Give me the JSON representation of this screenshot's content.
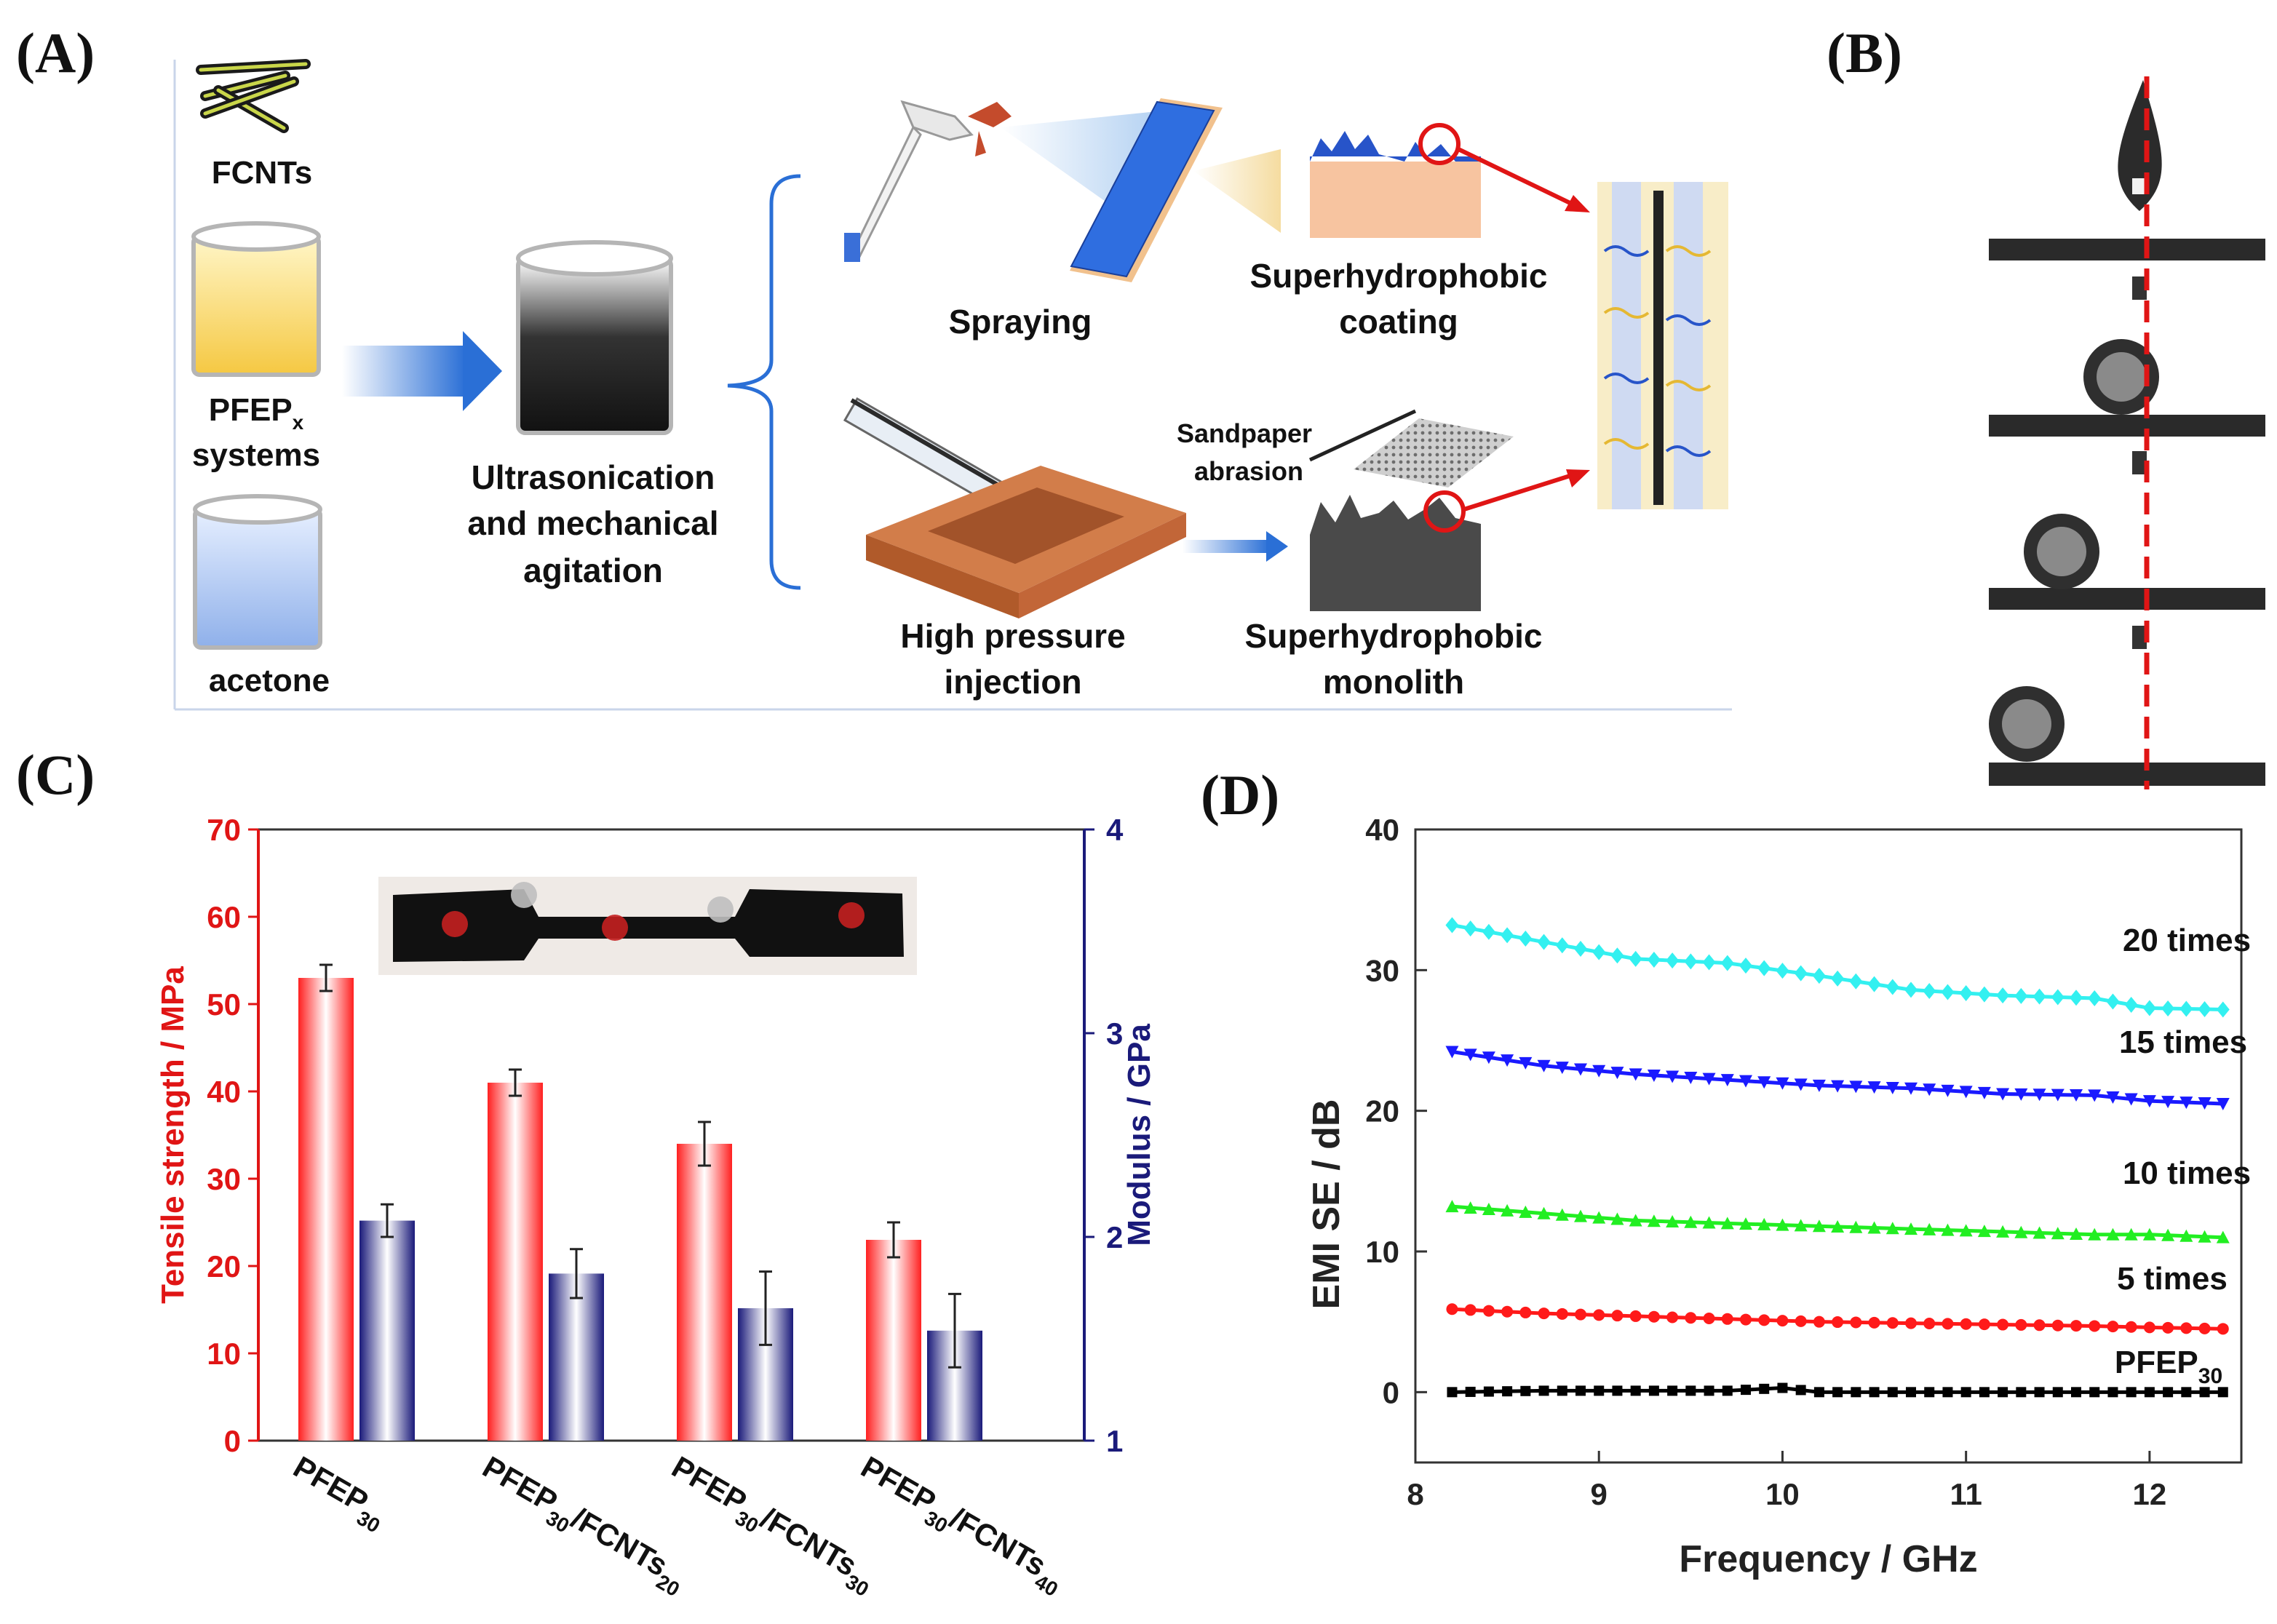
{
  "panels": {
    "a": "(A)",
    "b": "(B)",
    "c": "(C)",
    "d": "(D)"
  },
  "schematic": {
    "fcnts": "FCNTs",
    "pfep_main": "PFEP",
    "pfep_sub": "x",
    "systems": "systems",
    "acetone": "acetone",
    "ultra_1": "Ultrasonication",
    "ultra_2": "and mechanical",
    "ultra_3": "agitation",
    "spraying": "Spraying",
    "coating_1": "Superhydrophobic",
    "coating_2": "coating",
    "sandpaper_1": "Sandpaper",
    "sandpaper_2": "abrasion",
    "injection_1": "High pressure",
    "injection_2": "injection",
    "monolith_1": "Superhydrophobic",
    "monolith_2": "monolith"
  },
  "colors": {
    "red": "#ff1a1a",
    "navy": "#1a1a7a",
    "cyan": "#33f0f0",
    "blue": "#1a1aff",
    "green": "#22ee22",
    "black": "#000000",
    "accent_blue": "#2a6fd6"
  },
  "chart_data": [
    {
      "type": "bar",
      "title": "",
      "categories": [
        "PFEP30",
        "PFEP30/FCNTs20",
        "PFEP30/FCNTs30",
        "PFEP30/FCNTs40"
      ],
      "category_labels": [
        {
          "main": "PFEP",
          "sub1": "30",
          "mid": "",
          "sub2": ""
        },
        {
          "main": "PFEP",
          "sub1": "30",
          "mid": "/FCNTs",
          "sub2": "20"
        },
        {
          "main": "PFEP",
          "sub1": "30",
          "mid": "/FCNTs",
          "sub2": "30"
        },
        {
          "main": "PFEP",
          "sub1": "30",
          "mid": "/FCNTs",
          "sub2": "40"
        }
      ],
      "series": [
        {
          "name": "Tensile strength",
          "axis": "left",
          "values": [
            53,
            41,
            34,
            23
          ],
          "errors": [
            1.5,
            1.5,
            2.5,
            2.0
          ]
        },
        {
          "name": "Modulus",
          "axis": "right",
          "values": [
            2.08,
            1.82,
            1.65,
            1.54
          ],
          "errors": [
            0.08,
            0.12,
            0.18,
            0.18
          ]
        }
      ],
      "ylabel": "Tensile strength / MPa",
      "ylim": [
        0,
        70
      ],
      "yticks": [
        "0",
        "10",
        "20",
        "30",
        "40",
        "50",
        "60",
        "70"
      ],
      "y2label": "Modulus / GPa",
      "y2lim": [
        1,
        4
      ],
      "y2ticks": [
        "1",
        "2",
        "3",
        "4"
      ]
    },
    {
      "type": "scatter",
      "title": "",
      "xlabel": "Frequency / GHz",
      "ylabel": "EMI SE / dB",
      "xlim": [
        8,
        12.5
      ],
      "ylim": [
        -5,
        40
      ],
      "xticks": [
        "8",
        "9",
        "10",
        "11",
        "12"
      ],
      "yticks": [
        "0",
        "10",
        "20",
        "30",
        "40"
      ],
      "series": [
        {
          "name": "20 times",
          "color": "#33f0f0",
          "marker": "diamond",
          "x": [
            8.2,
            8.7,
            9.2,
            9.7,
            10.2,
            10.7,
            11.2,
            11.7,
            12.0,
            12.4
          ],
          "y": [
            33.2,
            32.0,
            30.8,
            30.5,
            29.6,
            28.6,
            28.2,
            28.0,
            27.3,
            27.2
          ]
        },
        {
          "name": "15 times",
          "color": "#1a1aff",
          "marker": "triangle-down",
          "x": [
            8.2,
            8.7,
            9.2,
            9.7,
            10.2,
            10.7,
            11.2,
            11.7,
            12.0,
            12.4
          ],
          "y": [
            24.2,
            23.2,
            22.6,
            22.2,
            21.8,
            21.6,
            21.2,
            21.1,
            20.7,
            20.5
          ]
        },
        {
          "name": "10 times",
          "color": "#22ee22",
          "marker": "triangle-up",
          "x": [
            8.2,
            8.7,
            9.2,
            9.7,
            10.2,
            10.7,
            11.2,
            11.7,
            12.0,
            12.4
          ],
          "y": [
            13.2,
            12.7,
            12.2,
            12.0,
            11.8,
            11.6,
            11.4,
            11.2,
            11.2,
            11.0
          ]
        },
        {
          "name": "5 times",
          "color": "#ff1a1a",
          "marker": "circle",
          "x": [
            8.2,
            8.7,
            9.2,
            9.7,
            10.2,
            10.7,
            11.2,
            11.7,
            12.0,
            12.4
          ],
          "y": [
            5.9,
            5.6,
            5.4,
            5.2,
            5.0,
            4.9,
            4.8,
            4.7,
            4.6,
            4.5
          ]
        },
        {
          "name": "PFEP30",
          "color": "#000000",
          "marker": "square",
          "x": [
            8.2,
            8.7,
            9.2,
            9.7,
            10.0,
            10.2,
            10.7,
            11.2,
            11.7,
            12.4
          ],
          "y": [
            0.0,
            0.1,
            0.1,
            0.1,
            0.3,
            0.0,
            0.0,
            0.0,
            0.0,
            0.0
          ]
        }
      ],
      "annotations": [
        {
          "text": "20 times"
        },
        {
          "text": "15 times"
        },
        {
          "text": "10 times"
        },
        {
          "text": "5 times"
        },
        {
          "main": "PFEP",
          "sub": "30"
        }
      ]
    }
  ]
}
